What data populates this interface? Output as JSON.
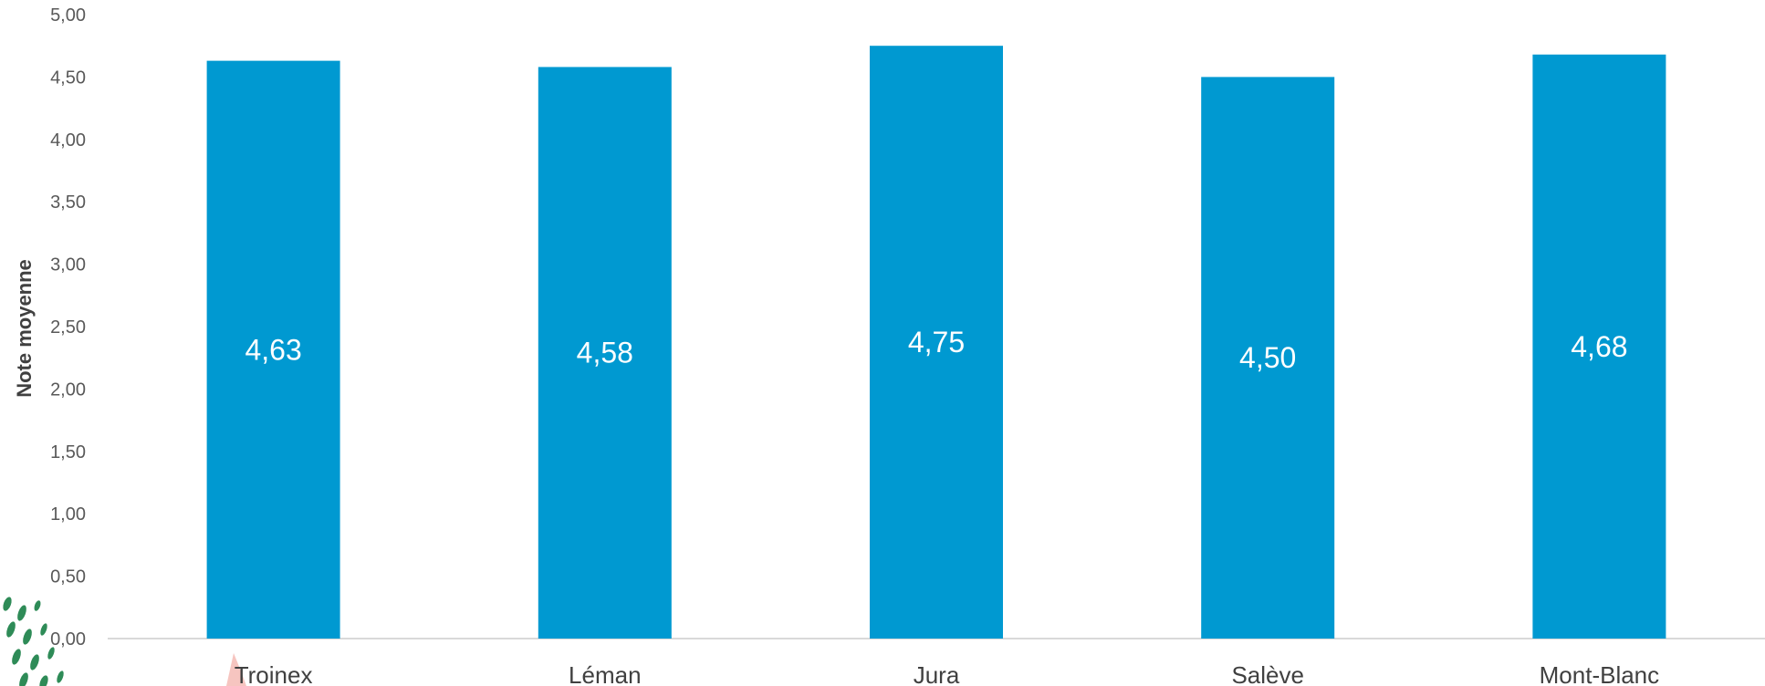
{
  "chart_data": {
    "type": "bar",
    "categories": [
      "Troinex",
      "Léman",
      "Jura",
      "Salève",
      "Mont-Blanc"
    ],
    "values": [
      4.63,
      4.58,
      4.75,
      4.5,
      4.68
    ],
    "value_labels": [
      "4,63",
      "4,58",
      "4,75",
      "4,50",
      "4,68"
    ],
    "title": "",
    "xlabel": "",
    "ylabel": "Note moyenne",
    "ylim": [
      0,
      5
    ],
    "ytick_values": [
      0,
      0.5,
      1,
      1.5,
      2,
      2.5,
      3,
      3.5,
      4,
      4.5,
      5
    ],
    "ytick_labels": [
      "0,00",
      "0,50",
      "1,00",
      "1,50",
      "2,00",
      "2,50",
      "3,00",
      "3,50",
      "4,00",
      "4,50",
      "5,00"
    ],
    "grid": false,
    "legend": "none",
    "colors": {
      "bar": "#0099D1",
      "axis_line": "#D9D9D9",
      "decor_green": "#2E8B57",
      "decor_pink": "#F4B6B0"
    }
  }
}
